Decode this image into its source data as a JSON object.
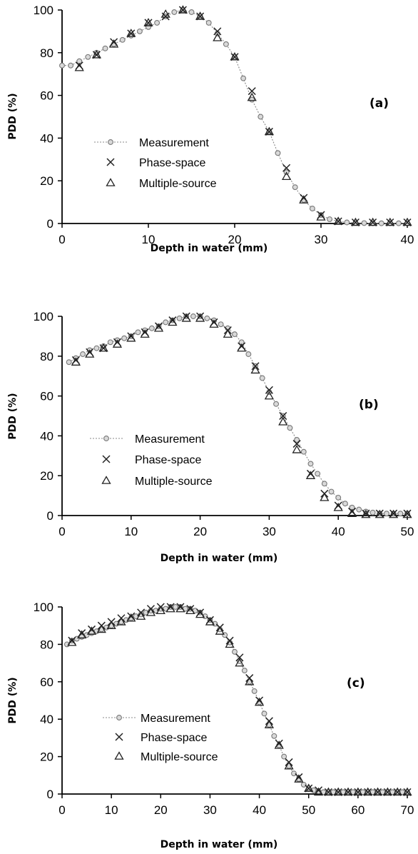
{
  "chart_data": [
    {
      "type": "scatter",
      "panel_label": "(a)",
      "xlabel": "Depth in water (mm)",
      "ylabel": "PDD (%)",
      "xlim": [
        0,
        40
      ],
      "ylim": [
        0,
        100
      ],
      "xticks": [
        0,
        10,
        20,
        30,
        40
      ],
      "yticks": [
        0,
        20,
        40,
        60,
        80,
        100
      ],
      "legend_position": "center-left",
      "series": [
        {
          "name": "Measurement",
          "marker": "circle-line",
          "x": [
            0,
            1,
            2,
            3,
            4,
            5,
            6,
            7,
            8,
            9,
            10,
            11,
            12,
            13,
            14,
            15,
            16,
            17,
            18,
            19,
            20,
            21,
            22,
            23,
            24,
            25,
            26,
            27,
            28,
            29,
            30,
            31,
            32,
            33,
            34,
            35,
            36,
            37,
            38,
            39,
            40
          ],
          "y": [
            74,
            74,
            76,
            78,
            80,
            82,
            84,
            86,
            88,
            90,
            92,
            94,
            97,
            99,
            100,
            99,
            97,
            94,
            89,
            84,
            78,
            68,
            58,
            50,
            43,
            33,
            24,
            17,
            11,
            7,
            4,
            2,
            1,
            0.5,
            0.3,
            0.2,
            0.1,
            0.1,
            0.1,
            0.1,
            0.1
          ]
        },
        {
          "name": "Phase-space",
          "marker": "x",
          "x": [
            2,
            4,
            6,
            8,
            10,
            12,
            14,
            16,
            18,
            20,
            22,
            24,
            26,
            28,
            30,
            32,
            34,
            36,
            38,
            40
          ],
          "y": [
            74,
            79,
            85,
            89,
            94,
            97,
            100,
            97,
            90,
            78,
            62,
            43,
            26,
            12,
            4,
            1,
            0.5,
            0.5,
            0.5,
            0.5
          ]
        },
        {
          "name": "Multiple-source",
          "marker": "triangle",
          "x": [
            2,
            4,
            6,
            8,
            10,
            12,
            14,
            16,
            18,
            20,
            22,
            24,
            26,
            28,
            30,
            32,
            34,
            36,
            38,
            40
          ],
          "y": [
            73,
            79,
            84,
            89,
            94,
            98,
            100,
            97,
            87,
            78,
            59,
            43,
            22,
            11,
            3,
            1,
            0.5,
            0.5,
            0.5,
            0.5
          ]
        }
      ]
    },
    {
      "type": "scatter",
      "panel_label": "(b)",
      "xlabel": "Depth in water (mm)",
      "ylabel": "PDD (%)",
      "xlim": [
        0,
        50
      ],
      "ylim": [
        0,
        100
      ],
      "xticks": [
        0,
        10,
        20,
        30,
        40,
        50
      ],
      "yticks": [
        0,
        20,
        40,
        60,
        80,
        100
      ],
      "legend_position": "center-left",
      "series": [
        {
          "name": "Measurement",
          "marker": "circle-line",
          "x": [
            1,
            2,
            3,
            4,
            5,
            6,
            7,
            8,
            9,
            10,
            11,
            12,
            13,
            14,
            15,
            16,
            17,
            18,
            19,
            20,
            21,
            22,
            23,
            24,
            25,
            26,
            27,
            28,
            29,
            30,
            31,
            32,
            33,
            34,
            35,
            36,
            37,
            38,
            39,
            40,
            41,
            42,
            43,
            44,
            45,
            46,
            47,
            48,
            49,
            50
          ],
          "y": [
            77,
            79,
            81,
            83,
            84,
            85,
            87,
            88,
            89,
            90,
            92,
            93,
            94,
            95,
            97,
            98,
            99,
            100,
            100,
            100,
            99,
            98,
            96,
            94,
            91,
            87,
            81,
            75,
            69,
            62,
            56,
            50,
            44,
            38,
            32,
            26,
            21,
            16,
            12,
            9,
            6,
            4,
            3,
            2,
            1.5,
            1,
            1,
            1,
            1,
            1
          ]
        },
        {
          "name": "Phase-space",
          "marker": "x",
          "x": [
            2,
            4,
            6,
            8,
            10,
            12,
            14,
            16,
            18,
            20,
            22,
            24,
            26,
            28,
            30,
            32,
            34,
            36,
            38,
            40,
            42,
            44,
            46,
            48,
            50
          ],
          "y": [
            78,
            82,
            84,
            87,
            90,
            92,
            95,
            98,
            100,
            100,
            97,
            93,
            85,
            75,
            63,
            50,
            36,
            21,
            11,
            5,
            2,
            1,
            1,
            1,
            1
          ]
        },
        {
          "name": "Multiple-source",
          "marker": "triangle",
          "x": [
            2,
            4,
            6,
            8,
            10,
            12,
            14,
            16,
            18,
            20,
            22,
            24,
            26,
            28,
            30,
            32,
            34,
            36,
            38,
            40,
            42,
            44,
            46,
            48,
            50
          ],
          "y": [
            77,
            81,
            84,
            86,
            89,
            91,
            94,
            97,
            99,
            99,
            96,
            91,
            84,
            73,
            60,
            47,
            33,
            20,
            9,
            4,
            1,
            0.5,
            0.5,
            0.5,
            0.5
          ]
        }
      ]
    },
    {
      "type": "scatter",
      "panel_label": "(c)",
      "xlabel": "Depth in water (mm)",
      "ylabel": "PDD (%)",
      "xlim": [
        0,
        70
      ],
      "ylim": [
        0,
        100
      ],
      "xticks": [
        0,
        10,
        20,
        30,
        40,
        50,
        60,
        70
      ],
      "yticks": [
        0,
        20,
        40,
        60,
        80,
        100
      ],
      "legend_position": "center-left",
      "series": [
        {
          "name": "Measurement",
          "marker": "circle-line",
          "x": [
            1,
            2,
            3,
            4,
            5,
            6,
            7,
            8,
            9,
            10,
            11,
            12,
            13,
            14,
            15,
            16,
            17,
            18,
            19,
            20,
            21,
            22,
            23,
            24,
            25,
            26,
            27,
            28,
            29,
            30,
            31,
            32,
            33,
            34,
            35,
            36,
            37,
            38,
            39,
            40,
            41,
            42,
            43,
            44,
            45,
            46,
            47,
            48,
            49,
            50,
            51,
            52,
            53,
            54,
            55,
            56,
            57,
            58,
            59,
            60,
            61,
            62,
            63,
            64,
            65,
            66,
            67,
            68,
            69,
            70
          ],
          "y": [
            80,
            82,
            83,
            84,
            85,
            86,
            87,
            88,
            89,
            90,
            91,
            92,
            93,
            94,
            95,
            96,
            97,
            98,
            98,
            99,
            99,
            100,
            100,
            100,
            99,
            99,
            98,
            97,
            95,
            93,
            91,
            88,
            85,
            81,
            76,
            71,
            66,
            60,
            55,
            49,
            43,
            37,
            31,
            26,
            20,
            15,
            11,
            8,
            5,
            3,
            2,
            1.5,
            1,
            1,
            1,
            1,
            1,
            1,
            1,
            1,
            1,
            1,
            1,
            1,
            1,
            1,
            1,
            1,
            1,
            1
          ]
        },
        {
          "name": "Phase-space",
          "marker": "x",
          "x": [
            2,
            4,
            6,
            8,
            10,
            12,
            14,
            16,
            18,
            20,
            22,
            24,
            26,
            28,
            30,
            32,
            34,
            36,
            38,
            40,
            42,
            44,
            46,
            48,
            50,
            52,
            54,
            56,
            58,
            60,
            62,
            64,
            66,
            68,
            70
          ],
          "y": [
            82,
            86,
            88,
            90,
            92,
            94,
            95,
            97,
            99,
            100,
            100,
            100,
            99,
            97,
            93,
            89,
            82,
            73,
            62,
            50,
            39,
            27,
            17,
            9,
            3,
            2,
            1,
            1,
            1,
            1,
            1,
            1,
            1,
            1,
            1
          ]
        },
        {
          "name": "Multiple-source",
          "marker": "triangle",
          "x": [
            2,
            4,
            6,
            8,
            10,
            12,
            14,
            16,
            18,
            20,
            22,
            24,
            26,
            28,
            30,
            32,
            34,
            36,
            38,
            40,
            42,
            44,
            46,
            48,
            50,
            52,
            54,
            56,
            58,
            60,
            62,
            64,
            66,
            68,
            70
          ],
          "y": [
            81,
            85,
            87,
            88,
            90,
            92,
            94,
            95,
            97,
            98,
            99,
            99,
            98,
            96,
            92,
            87,
            80,
            70,
            60,
            49,
            37,
            26,
            15,
            8,
            3,
            1,
            1,
            1,
            1,
            1,
            1,
            1,
            1,
            1,
            1
          ]
        }
      ]
    }
  ]
}
